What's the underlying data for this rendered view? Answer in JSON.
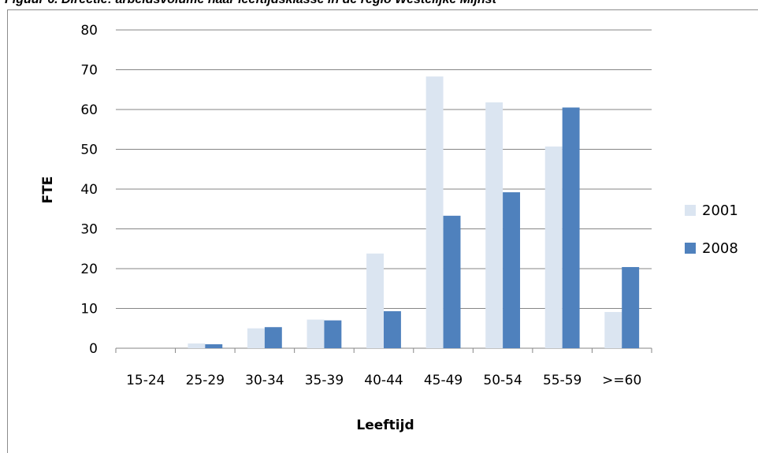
{
  "caption": "Figuur 6. Directie: arbeidsvolume naar leeftijdsklasse in de regio Westelijke Mijnst",
  "colors": {
    "series_2001": "#dbe5f1",
    "series_2008": "#4f81bd",
    "grid": "#868686"
  },
  "chart_data": {
    "type": "bar",
    "categories": [
      "15-24",
      "25-29",
      "30-34",
      "35-39",
      "40-44",
      "45-49",
      "50-54",
      "55-59",
      ">=60"
    ],
    "series": [
      {
        "name": "2001",
        "values": [
          0,
          1.2,
          5,
          7.2,
          23.8,
          68.3,
          61.8,
          50.7,
          9.1
        ]
      },
      {
        "name": "2008",
        "values": [
          0,
          1,
          5.3,
          7,
          9.3,
          33.3,
          39.2,
          60.5,
          20.4
        ]
      }
    ],
    "xlabel": "Leeftijd",
    "ylabel": "FTE",
    "ylim": [
      0,
      80
    ],
    "yticks": [
      0,
      10,
      20,
      30,
      40,
      50,
      60,
      70,
      80
    ],
    "grid": true,
    "legend": "right"
  }
}
